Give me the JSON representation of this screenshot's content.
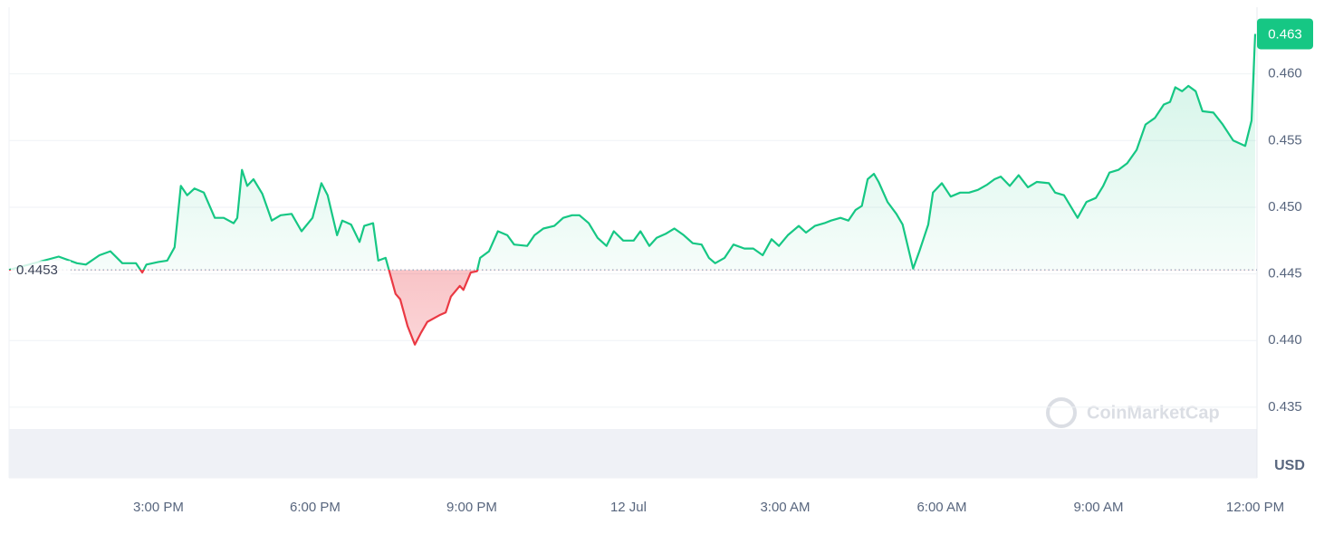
{
  "chart_data": {
    "type": "line",
    "x": [
      12.14,
      13.09,
      13.44,
      13.61,
      13.87,
      14.08,
      14.31,
      14.57,
      14.69,
      14.77,
      15.0,
      15.17,
      15.31,
      15.43,
      15.55,
      15.69,
      15.87,
      16.08,
      16.25,
      16.44,
      16.51,
      16.6,
      16.7,
      16.82,
      16.99,
      17.17,
      17.34,
      17.55,
      17.74,
      17.95,
      18.12,
      18.24,
      18.42,
      18.52,
      18.69,
      18.85,
      18.94,
      19.11,
      19.21,
      19.35,
      19.54,
      19.63,
      19.77,
      19.91,
      20.03,
      20.15,
      20.38,
      20.5,
      20.6,
      20.77,
      20.84,
      20.98,
      21.1,
      21.16,
      21.33,
      21.5,
      21.68,
      21.81,
      22.06,
      22.2,
      22.37,
      22.58,
      22.75,
      22.92,
      23.06,
      23.24,
      23.41,
      23.58,
      23.72,
      23.9,
      24.1,
      24.23,
      24.4,
      24.54,
      24.71,
      24.88,
      25.06,
      25.23,
      25.4,
      25.54,
      25.66,
      25.84,
      26.01,
      26.22,
      26.39,
      26.57,
      26.74,
      26.88,
      27.05,
      27.26,
      27.4,
      27.57,
      27.75,
      27.88,
      28.06,
      28.21,
      28.35,
      28.47,
      28.58,
      28.7,
      28.79,
      28.96,
      29.13,
      29.25,
      29.45,
      29.57,
      29.74,
      29.83,
      30.0,
      30.17,
      30.35,
      30.52,
      30.69,
      30.87,
      31.01,
      31.13,
      31.3,
      31.47,
      31.65,
      31.82,
      32.05,
      32.17,
      32.34,
      32.6,
      32.77,
      32.95,
      33.09,
      33.21,
      33.38,
      33.55,
      33.73,
      33.9,
      34.08,
      34.25,
      34.37,
      34.47,
      34.6,
      34.72,
      34.86,
      34.99,
      35.2,
      35.38,
      35.58,
      35.81,
      35.93,
      36.0
    ],
    "values": [
      0.4453,
      0.4463,
      0.4458,
      0.4457,
      0.4464,
      0.4467,
      0.4458,
      0.4458,
      0.4451,
      0.4457,
      0.4459,
      0.446,
      0.447,
      0.4516,
      0.4509,
      0.4514,
      0.4511,
      0.4492,
      0.4492,
      0.4488,
      0.4492,
      0.4528,
      0.4516,
      0.4521,
      0.451,
      0.449,
      0.4494,
      0.4495,
      0.4482,
      0.4492,
      0.4518,
      0.4509,
      0.4479,
      0.449,
      0.4487,
      0.4474,
      0.4486,
      0.4488,
      0.446,
      0.4462,
      0.4435,
      0.4431,
      0.4411,
      0.4397,
      0.4406,
      0.4414,
      0.4419,
      0.4421,
      0.4433,
      0.4441,
      0.4438,
      0.4451,
      0.4452,
      0.4462,
      0.4467,
      0.4482,
      0.4479,
      0.4472,
      0.4471,
      0.4479,
      0.4484,
      0.4486,
      0.4492,
      0.4494,
      0.4494,
      0.4488,
      0.4477,
      0.4471,
      0.4482,
      0.4475,
      0.4475,
      0.4482,
      0.4471,
      0.4477,
      0.448,
      0.4484,
      0.4479,
      0.4473,
      0.4472,
      0.4462,
      0.4458,
      0.4462,
      0.4472,
      0.4469,
      0.4469,
      0.4464,
      0.4476,
      0.4471,
      0.4479,
      0.4486,
      0.4481,
      0.4486,
      0.4488,
      0.449,
      0.4492,
      0.449,
      0.4498,
      0.4501,
      0.4521,
      0.4525,
      0.4519,
      0.4504,
      0.4495,
      0.4487,
      0.4454,
      0.4467,
      0.4487,
      0.4511,
      0.4518,
      0.4508,
      0.4511,
      0.4511,
      0.4513,
      0.4517,
      0.4521,
      0.4523,
      0.4516,
      0.4524,
      0.4515,
      0.4519,
      0.4518,
      0.4511,
      0.4509,
      0.4492,
      0.4504,
      0.4507,
      0.4516,
      0.4526,
      0.4528,
      0.4533,
      0.4543,
      0.4562,
      0.4567,
      0.4577,
      0.4579,
      0.459,
      0.4587,
      0.4591,
      0.4587,
      0.4572,
      0.4571,
      0.4562,
      0.455,
      0.4546,
      0.4565,
      0.463
    ],
    "color": "#16c784",
    "negative_color": "#ea3943",
    "baseline": 0.4453,
    "current_price": 0.463,
    "xlim": [
      12.14,
      36
    ],
    "xticks": [
      {
        "value": 15,
        "label": "3:00 PM"
      },
      {
        "value": 18,
        "label": "6:00 PM"
      },
      {
        "value": 21,
        "label": "9:00 PM"
      },
      {
        "value": 24,
        "label": "12 Jul"
      },
      {
        "value": 27,
        "label": "3:00 AM"
      },
      {
        "value": 30,
        "label": "6:00 AM"
      },
      {
        "value": 33,
        "label": "9:00 AM"
      },
      {
        "value": 36,
        "label": "12:00 PM"
      }
    ],
    "ylim": [
      0.4297,
      0.465
    ],
    "yticks": [
      0.435,
      {
        "value": 0.44,
        "label": "0.440"
      },
      0.445,
      {
        "value": 0.45,
        "label": "0.450"
      },
      0.455,
      {
        "value": 0.46,
        "label": "0.460"
      }
    ],
    "y_axis_label": "USD",
    "watermark": "CoinMarketCap",
    "grid": true
  }
}
